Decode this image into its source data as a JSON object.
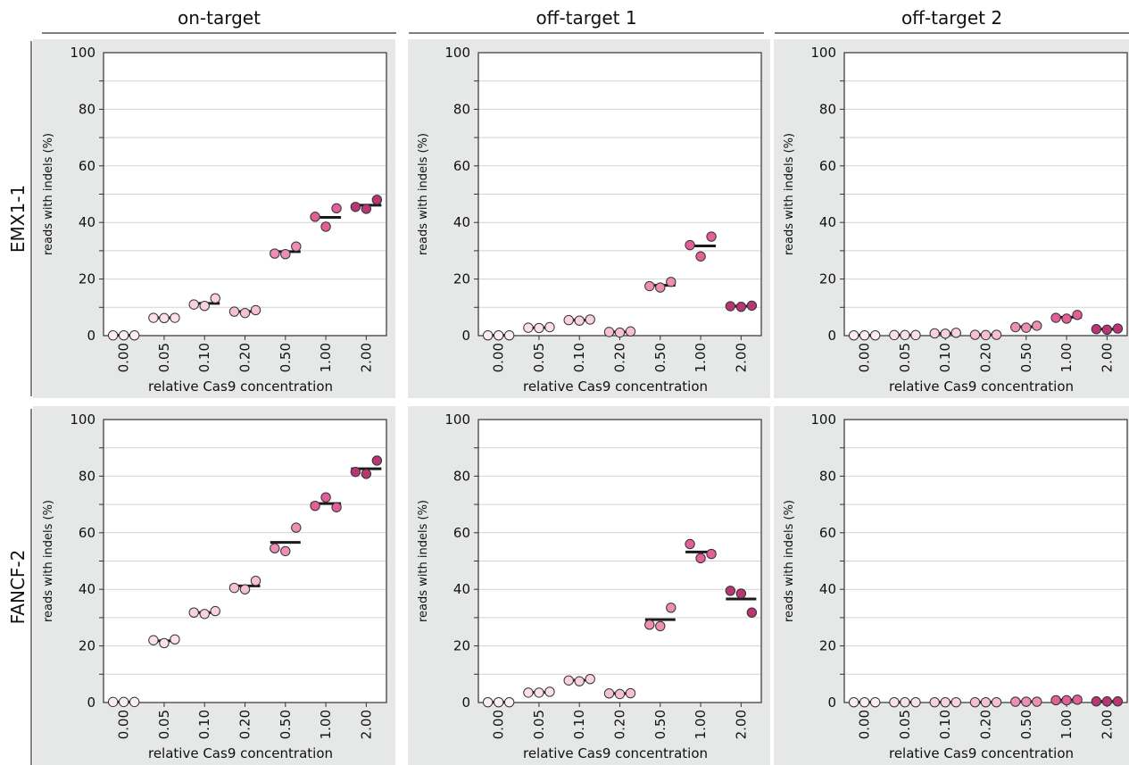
{
  "chart_data": {
    "type": "scatter",
    "column_titles": [
      "on-target",
      "off-target 1",
      "off-target 2"
    ],
    "row_titles": [
      "EMX1-1",
      "FANCF-2"
    ],
    "xlabel": "relative Cas9 concentration",
    "ylabel": "reads with indels (%)",
    "categories": [
      "0.00",
      "0.05",
      "0.10",
      "0.20",
      "0.50",
      "1.00",
      "2.00"
    ],
    "ylim": [
      0,
      100
    ],
    "yticks": [
      "0",
      "20",
      "40",
      "60",
      "80",
      "100"
    ],
    "grid": true,
    "point_colors": [
      "#fdeef3",
      "#fbe0ea",
      "#f9d1e0",
      "#f6bfd3",
      "#ee8eb5",
      "#e25f98",
      "#b83673"
    ],
    "mean_line_color": "#1a1a1a",
    "panel_background": "#e6e7e7",
    "panels": [
      {
        "row": "EMX1-1",
        "column": "on-target",
        "replicates": [
          [
            0.1,
            0.1,
            0.1
          ],
          [
            6.3,
            6.2,
            6.3
          ],
          [
            11,
            10.5,
            13.2
          ],
          [
            8.5,
            8,
            9
          ],
          [
            29,
            28.8,
            31.5
          ],
          [
            42,
            38.5,
            45
          ],
          [
            45.5,
            44.8,
            48
          ]
        ],
        "means": [
          0.1,
          6.3,
          11.4,
          8.5,
          29.7,
          41.8,
          46.1
        ]
      },
      {
        "row": "EMX1-1",
        "column": "off-target 1",
        "replicates": [
          [
            0.1,
            0.1,
            0.1
          ],
          [
            2.8,
            2.7,
            3
          ],
          [
            5.5,
            5.3,
            5.7
          ],
          [
            1.3,
            1.1,
            1.5
          ],
          [
            17.5,
            17,
            19
          ],
          [
            32,
            28,
            35
          ],
          [
            10.4,
            10.2,
            10.6
          ]
        ],
        "means": [
          0.1,
          2.8,
          5.5,
          1.3,
          17.8,
          31.7,
          10.4
        ]
      },
      {
        "row": "EMX1-1",
        "column": "off-target 2",
        "replicates": [
          [
            0.1,
            0.1,
            0.1
          ],
          [
            0.2,
            0.2,
            0.2
          ],
          [
            0.8,
            0.7,
            1
          ],
          [
            0.3,
            0.2,
            0.3
          ],
          [
            3,
            2.8,
            3.5
          ],
          [
            6.3,
            6,
            7.3
          ],
          [
            2.3,
            2.1,
            2.5
          ]
        ],
        "means": [
          0.1,
          0.2,
          0.8,
          0.3,
          3.1,
          6.5,
          2.3
        ]
      },
      {
        "row": "FANCF-2",
        "column": "on-target",
        "replicates": [
          [
            0.2,
            0.2,
            0.2
          ],
          [
            22,
            21,
            22.3
          ],
          [
            31.8,
            31.3,
            32.3
          ],
          [
            40.5,
            40,
            43
          ],
          [
            54.5,
            53.5,
            61.8
          ],
          [
            69.5,
            72.5,
            69
          ],
          [
            81.5,
            80.8,
            85.5
          ]
        ],
        "means": [
          0.2,
          21.8,
          31.8,
          41.2,
          56.6,
          70.3,
          82.6
        ]
      },
      {
        "row": "FANCF-2",
        "column": "off-target 1",
        "replicates": [
          [
            0.1,
            0.1,
            0.1
          ],
          [
            3.5,
            3.5,
            3.8
          ],
          [
            7.8,
            7.5,
            8.3
          ],
          [
            3.2,
            3,
            3.3
          ],
          [
            27.5,
            27,
            33.5
          ],
          [
            56,
            51,
            52.5
          ],
          [
            39.5,
            38.5,
            31.8
          ]
        ],
        "means": [
          0.1,
          3.6,
          7.9,
          3.2,
          29.3,
          53.2,
          36.6
        ]
      },
      {
        "row": "FANCF-2",
        "column": "off-target 2",
        "replicates": [
          [
            0.1,
            0.1,
            0.1
          ],
          [
            0.1,
            0.1,
            0.1
          ],
          [
            0.1,
            0.1,
            0.1
          ],
          [
            0.1,
            0.1,
            0.1
          ],
          [
            0.3,
            0.3,
            0.3
          ],
          [
            0.8,
            0.8,
            1
          ],
          [
            0.4,
            0.4,
            0.4
          ]
        ],
        "means": [
          0.1,
          0.1,
          0.1,
          0.1,
          0.3,
          0.9,
          0.4
        ]
      }
    ]
  }
}
